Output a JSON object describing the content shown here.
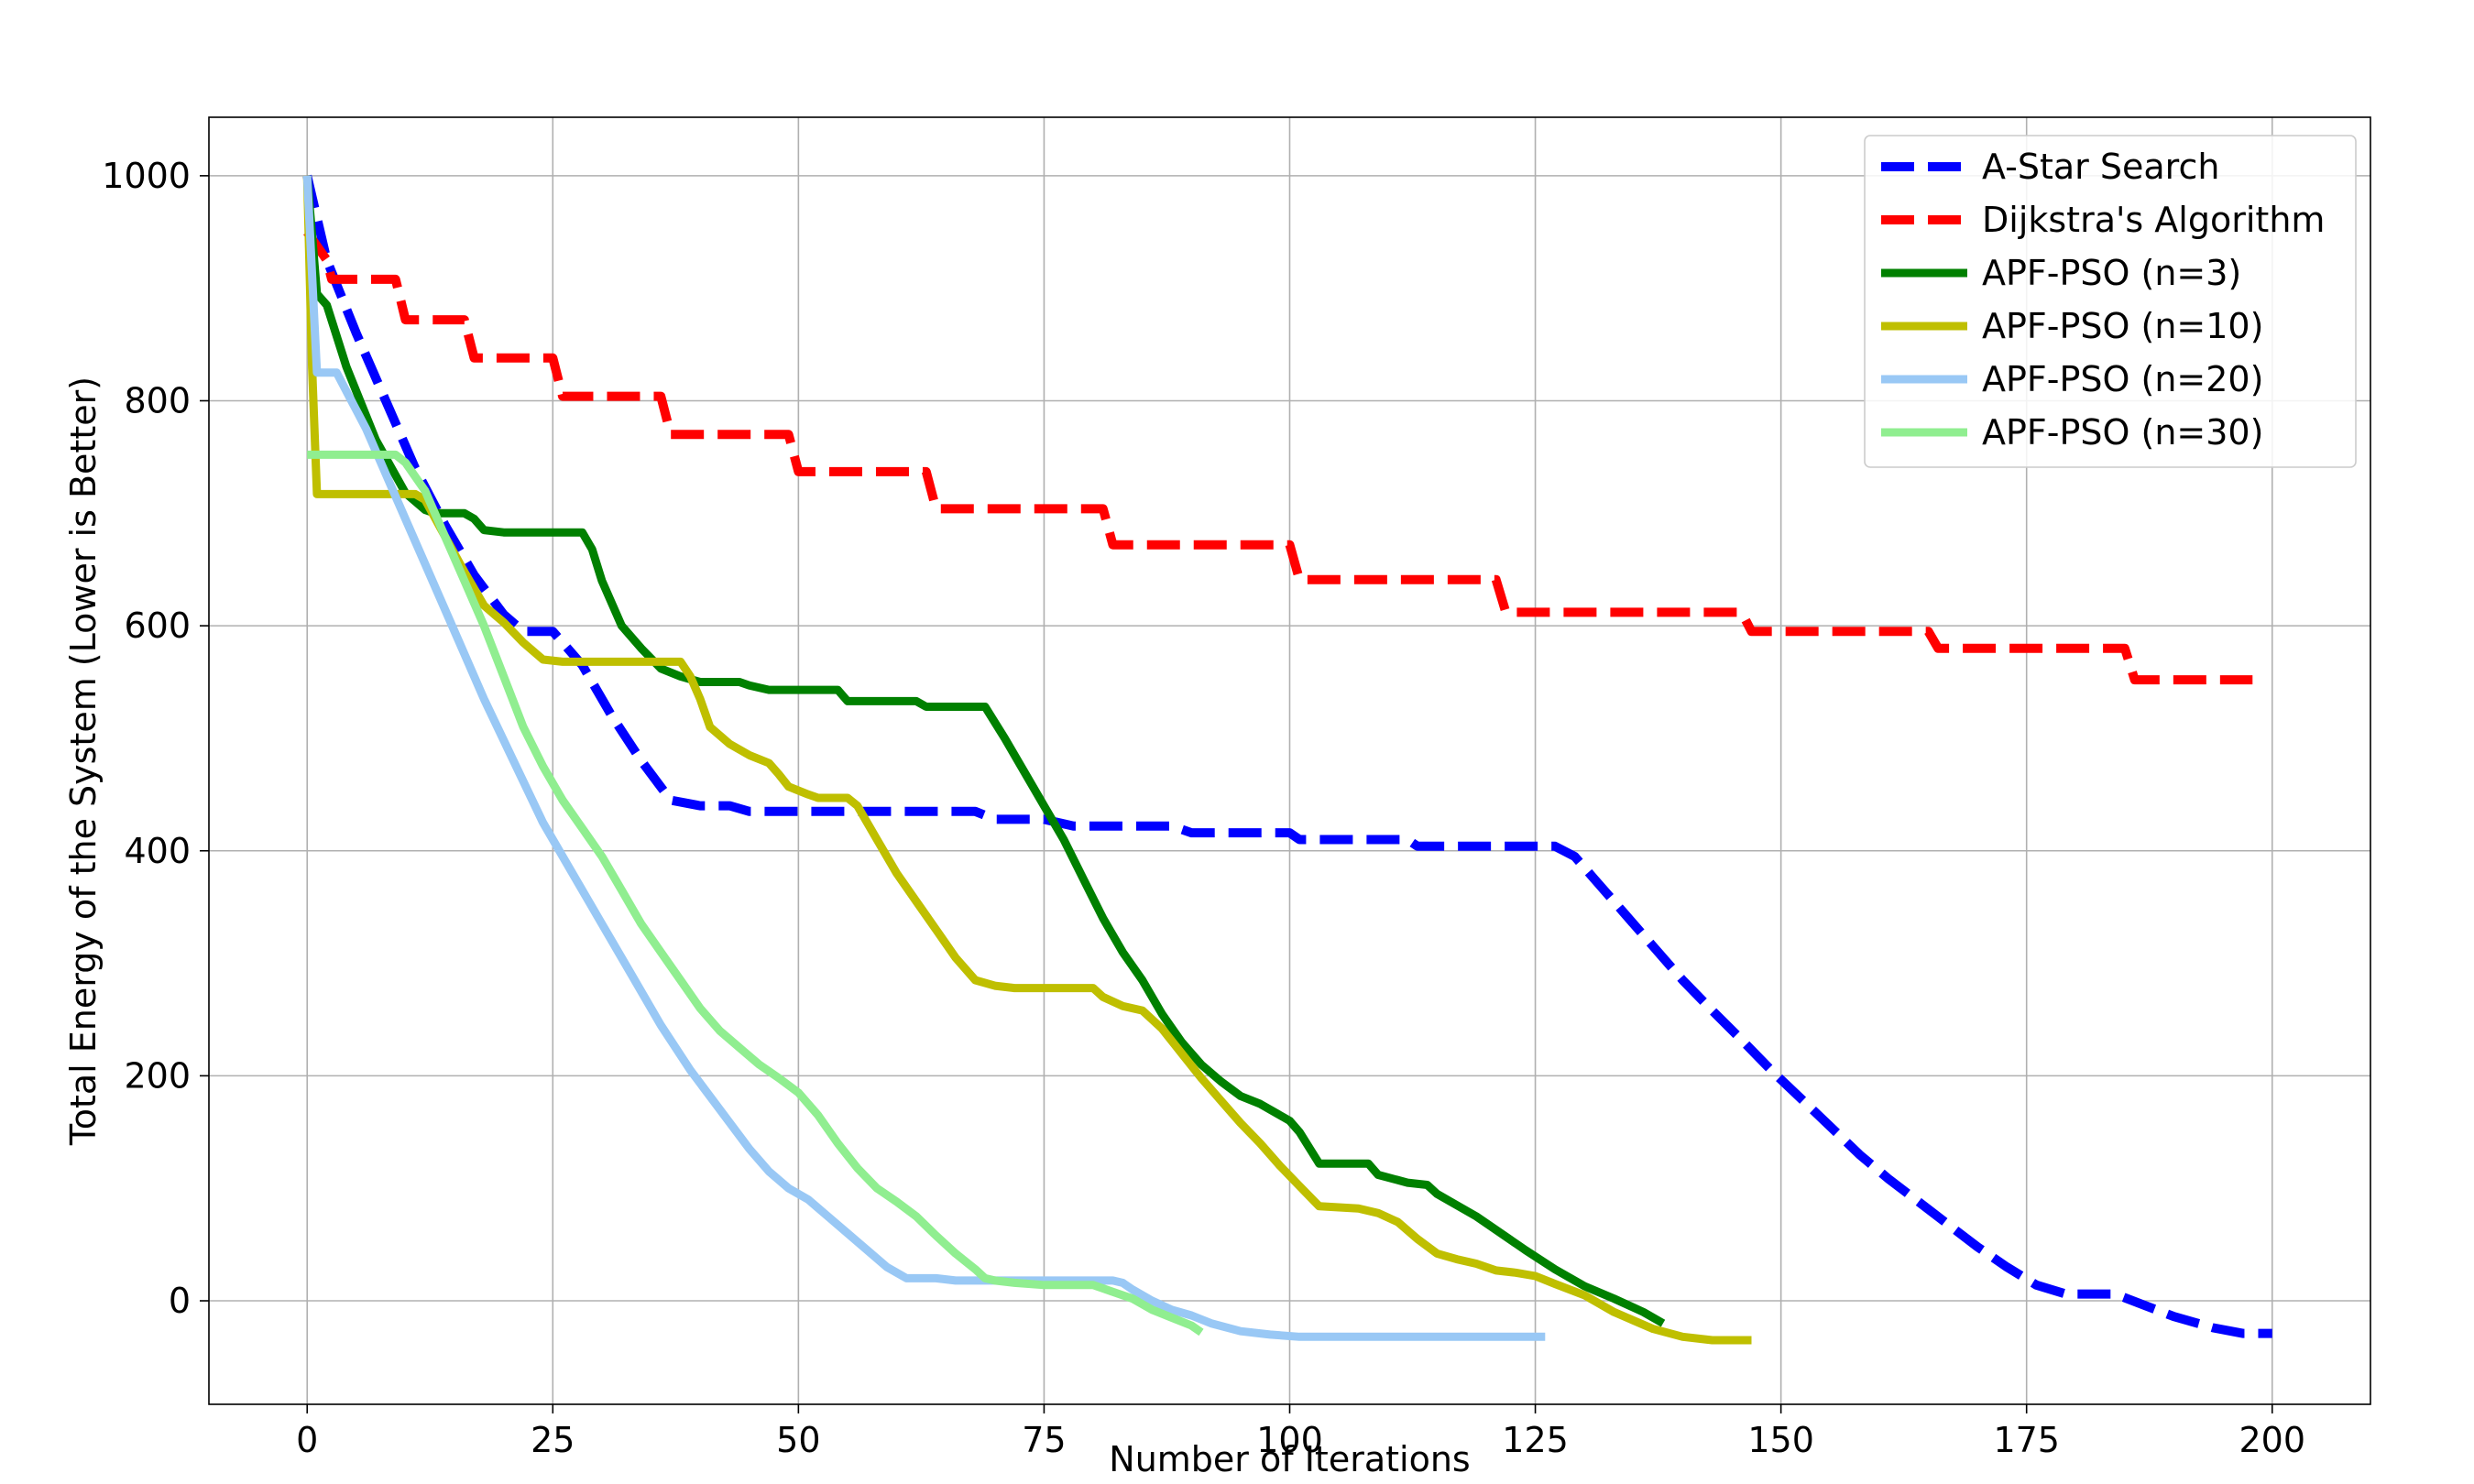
{
  "chart_data": {
    "type": "line",
    "title": "",
    "xlabel": "Number of Iterations",
    "ylabel": "Total Energy of the System (Lower is Better)",
    "xlim": [
      -10,
      210
    ],
    "ylim": [
      -92,
      1052
    ],
    "xticks": [
      0,
      25,
      50,
      75,
      100,
      125,
      150,
      175,
      200
    ],
    "yticks": [
      0,
      200,
      400,
      600,
      800,
      1000
    ],
    "grid": true,
    "legend_position": "top-right",
    "series": [
      {
        "name": "A-Star Search",
        "color": "#0000ff",
        "dashed": true,
        "points": [
          [
            0,
            1000
          ],
          [
            2,
            925
          ],
          [
            5,
            860
          ],
          [
            8,
            800
          ],
          [
            11,
            740
          ],
          [
            14,
            690
          ],
          [
            17,
            645
          ],
          [
            20,
            610
          ],
          [
            22,
            595
          ],
          [
            25,
            595
          ],
          [
            28,
            565
          ],
          [
            31,
            520
          ],
          [
            34,
            480
          ],
          [
            37,
            445
          ],
          [
            40,
            440
          ],
          [
            43,
            440
          ],
          [
            45,
            435
          ],
          [
            50,
            435
          ],
          [
            55,
            435
          ],
          [
            60,
            435
          ],
          [
            68,
            435
          ],
          [
            70,
            428
          ],
          [
            75,
            428
          ],
          [
            78,
            422
          ],
          [
            88,
            422
          ],
          [
            90,
            416
          ],
          [
            100,
            416
          ],
          [
            101,
            410
          ],
          [
            112,
            410
          ],
          [
            113,
            404
          ],
          [
            120,
            404
          ],
          [
            127,
            404
          ],
          [
            129,
            395
          ],
          [
            131,
            375
          ],
          [
            134,
            345
          ],
          [
            137,
            315
          ],
          [
            140,
            285
          ],
          [
            143,
            258
          ],
          [
            146,
            232
          ],
          [
            149,
            205
          ],
          [
            152,
            180
          ],
          [
            155,
            155
          ],
          [
            158,
            130
          ],
          [
            161,
            108
          ],
          [
            164,
            88
          ],
          [
            167,
            68
          ],
          [
            170,
            48
          ],
          [
            173,
            30
          ],
          [
            176,
            14
          ],
          [
            179,
            6
          ],
          [
            184,
            6
          ],
          [
            187,
            -4
          ],
          [
            190,
            -14
          ],
          [
            194,
            -24
          ],
          [
            197,
            -29
          ],
          [
            200,
            -29
          ]
        ]
      },
      {
        "name": "Dijkstra's Algorithm",
        "color": "#ff0000",
        "dashed": true,
        "points": [
          [
            0,
            950
          ],
          [
            2,
            925
          ],
          [
            2.5,
            908
          ],
          [
            9,
            908
          ],
          [
            10,
            872
          ],
          [
            16,
            872
          ],
          [
            17,
            838
          ],
          [
            25,
            838
          ],
          [
            26,
            804
          ],
          [
            36,
            804
          ],
          [
            37,
            770
          ],
          [
            49,
            770
          ],
          [
            50,
            737
          ],
          [
            63,
            737
          ],
          [
            64,
            704
          ],
          [
            81,
            704
          ],
          [
            82,
            672
          ],
          [
            100,
            672
          ],
          [
            101,
            641
          ],
          [
            121,
            641
          ],
          [
            122,
            612
          ],
          [
            146,
            612
          ],
          [
            147,
            595
          ],
          [
            165,
            595
          ],
          [
            166,
            580
          ],
          [
            185,
            580
          ],
          [
            186,
            552
          ],
          [
            198,
            552
          ]
        ]
      },
      {
        "name": "APF-PSO (n=3)",
        "color": "#008000",
        "dashed": false,
        "points": [
          [
            0,
            1000
          ],
          [
            1,
            895
          ],
          [
            2,
            885
          ],
          [
            4,
            830
          ],
          [
            7,
            765
          ],
          [
            10,
            718
          ],
          [
            12,
            703
          ],
          [
            13,
            700
          ],
          [
            16,
            700
          ],
          [
            17,
            695
          ],
          [
            18,
            685
          ],
          [
            20,
            683
          ],
          [
            28,
            683
          ],
          [
            29,
            668
          ],
          [
            30,
            640
          ],
          [
            32,
            600
          ],
          [
            34,
            580
          ],
          [
            36,
            562
          ],
          [
            38,
            555
          ],
          [
            40,
            550
          ],
          [
            44,
            550
          ],
          [
            45,
            547
          ],
          [
            47,
            543
          ],
          [
            54,
            543
          ],
          [
            55,
            533
          ],
          [
            62,
            533
          ],
          [
            63,
            528
          ],
          [
            69,
            528
          ],
          [
            71,
            500
          ],
          [
            73,
            470
          ],
          [
            75,
            440
          ],
          [
            77,
            410
          ],
          [
            79,
            375
          ],
          [
            81,
            340
          ],
          [
            83,
            310
          ],
          [
            85,
            285
          ],
          [
            87,
            255
          ],
          [
            89,
            230
          ],
          [
            91,
            210
          ],
          [
            93,
            195
          ],
          [
            95,
            182
          ],
          [
            97,
            175
          ],
          [
            100,
            160
          ],
          [
            101,
            150
          ],
          [
            103,
            122
          ],
          [
            108,
            122
          ],
          [
            109,
            112
          ],
          [
            112,
            105
          ],
          [
            114,
            103
          ],
          [
            115,
            95
          ],
          [
            117,
            85
          ],
          [
            119,
            75
          ],
          [
            121,
            63
          ],
          [
            124,
            45
          ],
          [
            127,
            28
          ],
          [
            130,
            13
          ],
          [
            133,
            2
          ],
          [
            136,
            -10
          ],
          [
            138,
            -20
          ]
        ]
      },
      {
        "name": "APF-PSO (n=10)",
        "color": "#bfbf00",
        "dashed": false,
        "points": [
          [
            0,
            1000
          ],
          [
            0.5,
            830
          ],
          [
            1,
            717
          ],
          [
            11,
            717
          ],
          [
            12,
            712
          ],
          [
            14,
            680
          ],
          [
            16,
            648
          ],
          [
            18,
            618
          ],
          [
            20,
            603
          ],
          [
            22,
            585
          ],
          [
            24,
            570
          ],
          [
            26,
            568
          ],
          [
            38,
            568
          ],
          [
            39,
            555
          ],
          [
            40,
            535
          ],
          [
            41,
            510
          ],
          [
            43,
            495
          ],
          [
            45,
            485
          ],
          [
            47,
            478
          ],
          [
            48,
            468
          ],
          [
            49,
            457
          ],
          [
            51,
            450
          ],
          [
            52,
            447
          ],
          [
            55,
            447
          ],
          [
            56,
            440
          ],
          [
            58,
            410
          ],
          [
            60,
            380
          ],
          [
            62,
            355
          ],
          [
            64,
            330
          ],
          [
            66,
            305
          ],
          [
            68,
            285
          ],
          [
            70,
            280
          ],
          [
            72,
            278
          ],
          [
            80,
            278
          ],
          [
            81,
            270
          ],
          [
            83,
            262
          ],
          [
            85,
            258
          ],
          [
            87,
            242
          ],
          [
            89,
            220
          ],
          [
            91,
            198
          ],
          [
            93,
            178
          ],
          [
            95,
            158
          ],
          [
            97,
            140
          ],
          [
            99,
            120
          ],
          [
            101,
            102
          ],
          [
            103,
            84
          ],
          [
            107,
            82
          ],
          [
            109,
            78
          ],
          [
            111,
            70
          ],
          [
            113,
            55
          ],
          [
            115,
            42
          ],
          [
            117,
            37
          ],
          [
            119,
            33
          ],
          [
            121,
            27
          ],
          [
            123,
            25
          ],
          [
            125,
            22
          ],
          [
            127,
            15
          ],
          [
            130,
            5
          ],
          [
            133,
            -10
          ],
          [
            137,
            -25
          ],
          [
            140,
            -32
          ],
          [
            143,
            -35
          ],
          [
            147,
            -35
          ]
        ]
      },
      {
        "name": "APF-PSO (n=20)",
        "color": "#99c8f5",
        "dashed": false,
        "points": [
          [
            0,
            1000
          ],
          [
            1,
            825
          ],
          [
            3,
            825
          ],
          [
            6,
            775
          ],
          [
            9,
            715
          ],
          [
            12,
            655
          ],
          [
            15,
            595
          ],
          [
            18,
            535
          ],
          [
            21,
            480
          ],
          [
            24,
            425
          ],
          [
            27,
            380
          ],
          [
            30,
            335
          ],
          [
            33,
            290
          ],
          [
            36,
            245
          ],
          [
            39,
            205
          ],
          [
            42,
            170
          ],
          [
            45,
            135
          ],
          [
            47,
            115
          ],
          [
            49,
            100
          ],
          [
            51,
            90
          ],
          [
            53,
            75
          ],
          [
            55,
            60
          ],
          [
            57,
            45
          ],
          [
            59,
            30
          ],
          [
            61,
            20
          ],
          [
            64,
            20
          ],
          [
            66,
            18
          ],
          [
            82,
            18
          ],
          [
            83,
            16
          ],
          [
            84,
            10
          ],
          [
            86,
            0
          ],
          [
            88,
            -8
          ],
          [
            90,
            -13
          ],
          [
            92,
            -20
          ],
          [
            95,
            -27
          ],
          [
            98,
            -30
          ],
          [
            101,
            -32
          ],
          [
            110,
            -32
          ],
          [
            126,
            -32
          ]
        ]
      },
      {
        "name": "APF-PSO (n=30)",
        "color": "#90ee90",
        "dashed": false,
        "points": [
          [
            0,
            752
          ],
          [
            9,
            752
          ],
          [
            10,
            745
          ],
          [
            12,
            720
          ],
          [
            14,
            680
          ],
          [
            16,
            640
          ],
          [
            18,
            600
          ],
          [
            20,
            555
          ],
          [
            22,
            510
          ],
          [
            24,
            475
          ],
          [
            26,
            445
          ],
          [
            28,
            420
          ],
          [
            30,
            395
          ],
          [
            32,
            365
          ],
          [
            34,
            335
          ],
          [
            36,
            310
          ],
          [
            38,
            285
          ],
          [
            40,
            260
          ],
          [
            42,
            240
          ],
          [
            44,
            225
          ],
          [
            46,
            210
          ],
          [
            48,
            198
          ],
          [
            50,
            185
          ],
          [
            52,
            165
          ],
          [
            54,
            140
          ],
          [
            56,
            118
          ],
          [
            58,
            100
          ],
          [
            60,
            88
          ],
          [
            62,
            75
          ],
          [
            64,
            58
          ],
          [
            66,
            42
          ],
          [
            68,
            28
          ],
          [
            69,
            20
          ],
          [
            70,
            18
          ],
          [
            72,
            16
          ],
          [
            75,
            14
          ],
          [
            80,
            14
          ],
          [
            82,
            8
          ],
          [
            84,
            2
          ],
          [
            86,
            -8
          ],
          [
            88,
            -15
          ],
          [
            90,
            -22
          ],
          [
            91,
            -28
          ]
        ]
      }
    ]
  }
}
